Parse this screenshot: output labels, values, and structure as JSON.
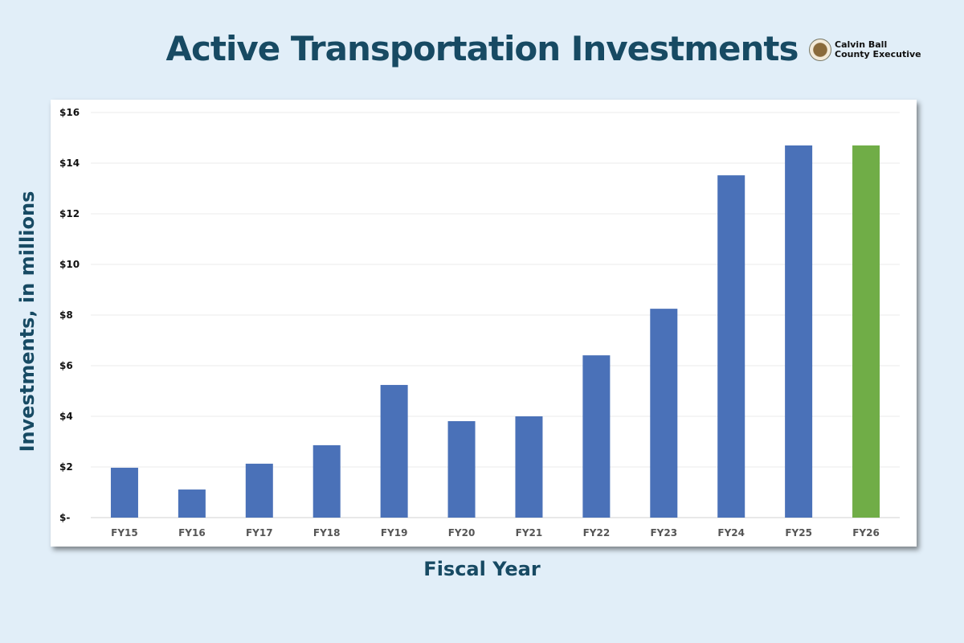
{
  "chart_data": {
    "type": "bar",
    "title": "Active Transportation Investments",
    "xlabel": "Fiscal Year",
    "ylabel": "Investments, in millions",
    "categories": [
      "FY15",
      "FY16",
      "FY17",
      "FY18",
      "FY19",
      "FY20",
      "FY21",
      "FY22",
      "FY23",
      "FY24",
      "FY25",
      "FY26"
    ],
    "values": [
      1.97,
      1.11,
      2.13,
      2.86,
      5.24,
      3.81,
      4.0,
      6.41,
      8.25,
      13.52,
      14.7,
      14.7
    ],
    "bar_colors": [
      "#4a71b8",
      "#4a71b8",
      "#4a71b8",
      "#4a71b8",
      "#4a71b8",
      "#4a71b8",
      "#4a71b8",
      "#4a71b8",
      "#4a71b8",
      "#4a71b8",
      "#4a71b8",
      "#70ad47"
    ],
    "ylim": [
      0,
      16
    ],
    "yticks": [
      0,
      2,
      4,
      6,
      8,
      10,
      12,
      14,
      16
    ],
    "ytick_labels": [
      "$-",
      "$2",
      "$4",
      "$6",
      "$8",
      "$10",
      "$12",
      "$14",
      "$16"
    ],
    "grid": true,
    "legend": "none"
  },
  "logo": {
    "line1": "Calvin Ball",
    "line2": "County Executive"
  }
}
